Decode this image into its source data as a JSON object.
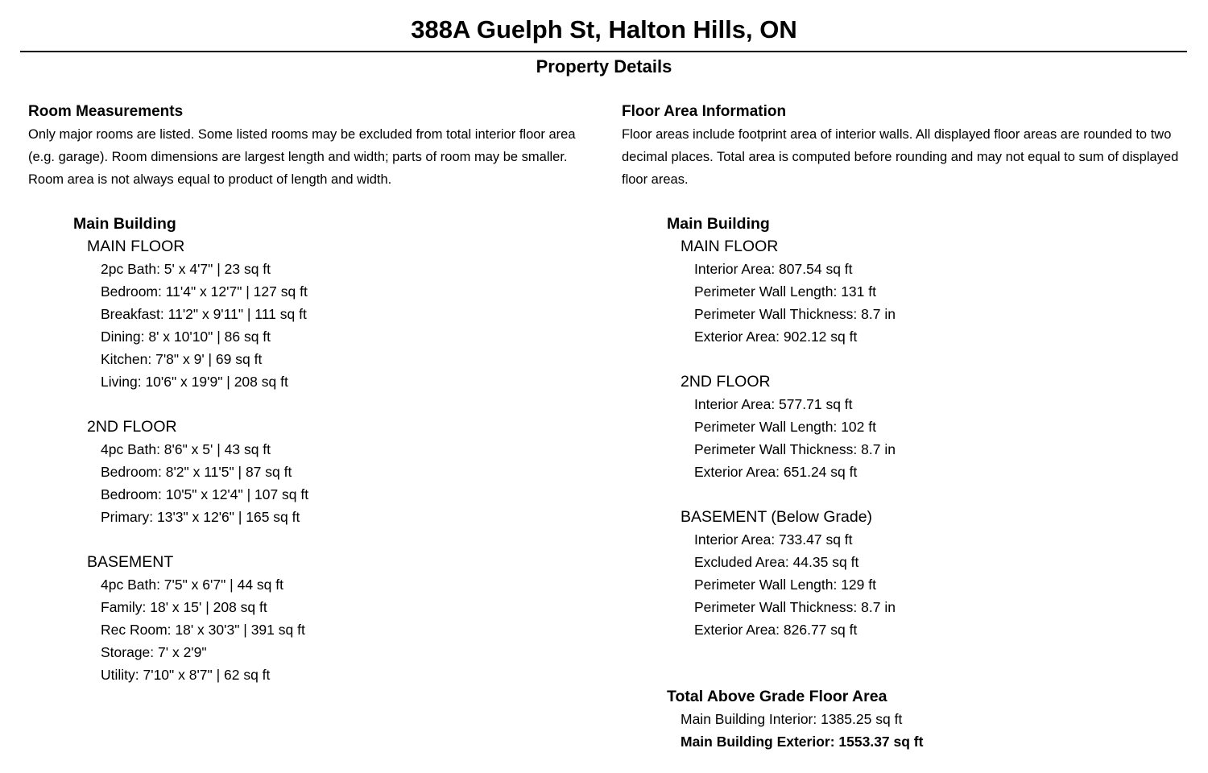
{
  "title": "388A Guelph St, Halton Hills, ON",
  "subtitle": "Property Details",
  "rooms": {
    "heading": "Room Measurements",
    "note": "Only major rooms are listed. Some listed rooms may be excluded from total interior floor area (e.g. garage). Room dimensions are largest length and width; parts of room may be smaller. Room area is not always equal to product of length and width.",
    "building": "Main Building",
    "floors": [
      {
        "name": "MAIN FLOOR",
        "items": [
          "2pc Bath: 5' x 4'7\" | 23 sq ft",
          "Bedroom: 11'4\" x 12'7\" | 127 sq ft",
          "Breakfast: 11'2\" x 9'11\" | 111 sq ft",
          "Dining: 8' x 10'10\" | 86 sq ft",
          "Kitchen: 7'8\" x 9' | 69 sq ft",
          "Living: 10'6\" x 19'9\" | 208 sq ft"
        ]
      },
      {
        "name": "2ND FLOOR",
        "items": [
          "4pc Bath: 8'6\" x 5' | 43 sq ft",
          "Bedroom: 8'2\" x 11'5\" | 87 sq ft",
          "Bedroom: 10'5\" x 12'4\" | 107 sq ft",
          "Primary: 13'3\" x 12'6\" | 165 sq ft"
        ]
      },
      {
        "name": "BASEMENT",
        "items": [
          "4pc Bath: 7'5\" x 6'7\" | 44 sq ft",
          "Family: 18' x 15' | 208 sq ft",
          "Rec Room: 18' x 30'3\" | 391 sq ft",
          "Storage: 7' x 2'9\"",
          "Utility: 7'10\" x 8'7\" | 62 sq ft"
        ]
      }
    ]
  },
  "areas": {
    "heading": "Floor Area Information",
    "note": "Floor areas include footprint area of interior walls. All displayed floor areas are rounded to two decimal places. Total area is computed before rounding and may not equal to sum of displayed floor areas.",
    "building": "Main Building",
    "floors": [
      {
        "name": "MAIN FLOOR",
        "items": [
          "Interior Area: 807.54 sq ft",
          "Perimeter Wall Length: 131 ft",
          "Perimeter Wall Thickness: 8.7 in",
          "Exterior Area: 902.12 sq ft"
        ]
      },
      {
        "name": "2ND FLOOR",
        "items": [
          "Interior Area: 577.71 sq ft",
          "Perimeter Wall Length: 102 ft",
          "Perimeter Wall Thickness: 8.7 in",
          "Exterior Area: 651.24 sq ft"
        ]
      },
      {
        "name": "BASEMENT (Below Grade)",
        "items": [
          "Interior Area: 733.47 sq ft",
          "Excluded Area: 44.35 sq ft",
          "Perimeter Wall Length: 129 ft",
          "Perimeter Wall Thickness: 8.7 in",
          "Exterior Area: 826.77 sq ft"
        ]
      }
    ],
    "total": {
      "heading": "Total Above Grade Floor Area",
      "interior": "Main Building Interior: 1385.25 sq ft",
      "exterior": "Main Building Exterior: 1553.37 sq ft"
    }
  }
}
